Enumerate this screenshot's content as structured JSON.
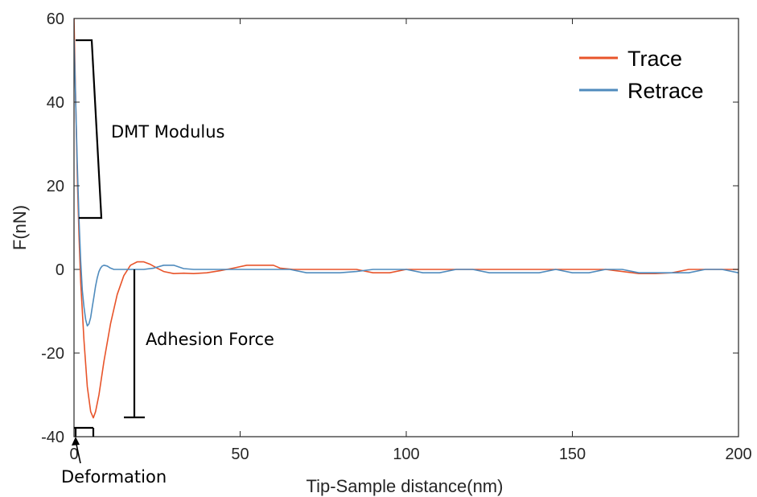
{
  "chart_data": {
    "type": "line",
    "xlabel": "Tip-Sample distance(nm)",
    "ylabel": "F(nN)",
    "xlim": [
      0,
      200
    ],
    "ylim": [
      -40,
      60
    ],
    "xticks": [
      0,
      50,
      100,
      150,
      200
    ],
    "yticks": [
      -40,
      -20,
      0,
      20,
      40,
      60
    ],
    "grid": false,
    "legend_position": "top-right",
    "series": [
      {
        "name": "Trace",
        "color": "#e8542a",
        "x": [
          0,
          0.5,
          1,
          1.5,
          2,
          3,
          4,
          5,
          5.8,
          6.5,
          7.5,
          9,
          11,
          13,
          15,
          17,
          19,
          21,
          23,
          25,
          27,
          30,
          33,
          36,
          40,
          44,
          48,
          52,
          55,
          60,
          62,
          66,
          70,
          75,
          80,
          85,
          90,
          95,
          100,
          105,
          110,
          115,
          120,
          125,
          130,
          135,
          140,
          145,
          150,
          155,
          160,
          165,
          170,
          175,
          180,
          185,
          190,
          195,
          200
        ],
        "y": [
          60,
          40,
          22,
          8,
          -3,
          -17,
          -28,
          -34,
          -35.5,
          -34,
          -30,
          -22,
          -13,
          -6,
          -1.5,
          1,
          1.8,
          1.8,
          1.2,
          0.3,
          -0.5,
          -1,
          -0.9,
          -1,
          -0.8,
          -0.3,
          0.3,
          1,
          1,
          1,
          0.3,
          0,
          0,
          0,
          0,
          0,
          -0.8,
          -0.8,
          0,
          0,
          0,
          0,
          0,
          0,
          0,
          0,
          0,
          0,
          0,
          0,
          0,
          -0.5,
          -1,
          -1,
          -0.8,
          0,
          0,
          0,
          0
        ]
      },
      {
        "name": "Retrace",
        "color": "#4f8bbd",
        "x": [
          0,
          0.5,
          1,
          1.5,
          2,
          2.5,
          3,
          3.5,
          4,
          4.5,
          5,
          5.5,
          6,
          6.5,
          7,
          7.5,
          8,
          8.5,
          9,
          10,
          11,
          12,
          13,
          15,
          18,
          21,
          24,
          27,
          30,
          33,
          36,
          40,
          45,
          50,
          55,
          60,
          65,
          70,
          75,
          80,
          85,
          90,
          95,
          100,
          105,
          110,
          115,
          120,
          125,
          130,
          135,
          140,
          145,
          150,
          155,
          160,
          165,
          170,
          175,
          180,
          185,
          190,
          195,
          200
        ],
        "y": [
          55,
          40,
          25,
          12,
          2,
          -5,
          -9,
          -12,
          -13.5,
          -13,
          -11.5,
          -9,
          -6.5,
          -4,
          -2,
          -0.5,
          0.3,
          0.8,
          1,
          0.8,
          0.3,
          0,
          0,
          0,
          0,
          0,
          0.3,
          1,
          1,
          0.2,
          0,
          0,
          0,
          0,
          0,
          0,
          0,
          -0.8,
          -0.8,
          -0.8,
          -0.5,
          0,
          0,
          0,
          -0.8,
          -0.8,
          0,
          0,
          -0.8,
          -0.8,
          -0.8,
          -0.8,
          0,
          -0.8,
          -0.8,
          0,
          0,
          -0.8,
          -0.8,
          -0.8,
          -0.8,
          0,
          0,
          -0.8
        ]
      }
    ],
    "annotations": [
      {
        "id": "dmt",
        "text": "DMT Modulus"
      },
      {
        "id": "adhesion",
        "text": "Adhesion Force"
      },
      {
        "id": "deformation",
        "text": "Deformation"
      }
    ]
  }
}
